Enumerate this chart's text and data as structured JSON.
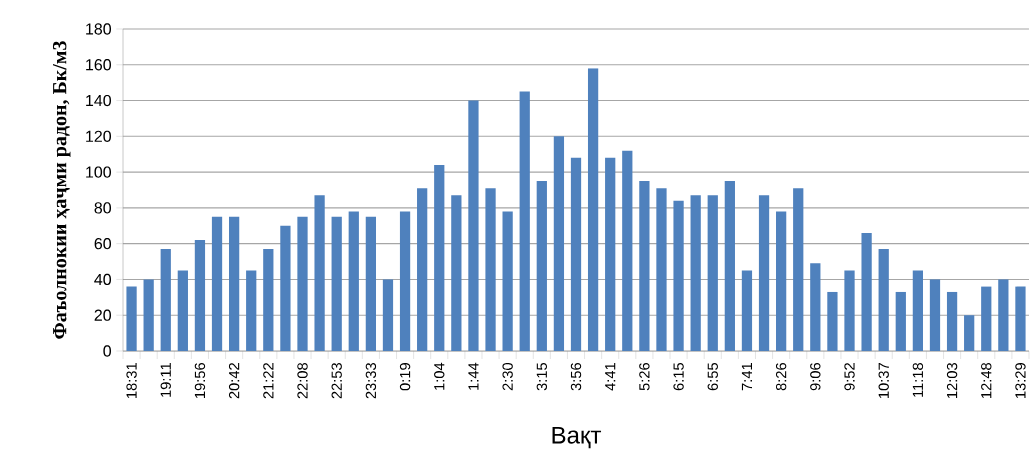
{
  "chart_data": {
    "type": "bar",
    "xlabel": "Вақт",
    "ylabel": "Фаъолнокии ҳаҷми радон, Бк/м3",
    "categories": [
      "18:31",
      null,
      "19:11",
      null,
      "19:56",
      null,
      "20:42",
      null,
      "21:22",
      null,
      "22:08",
      null,
      "22:53",
      null,
      "23:33",
      null,
      "0:19",
      null,
      "1:04",
      null,
      "1:44",
      null,
      "2:30",
      null,
      "3:15",
      null,
      "3:56",
      null,
      "4:41",
      null,
      "5:26",
      null,
      "6:15",
      null,
      "6:55",
      null,
      "7:41",
      null,
      "8:26",
      null,
      "9:06",
      null,
      "9:52",
      null,
      "10:37",
      null,
      "11:18",
      null,
      "12:03",
      null,
      "12:48",
      null,
      "13:29"
    ],
    "values": [
      36,
      40,
      57,
      45,
      62,
      75,
      75,
      45,
      57,
      70,
      75,
      87,
      75,
      78,
      75,
      40,
      78,
      91,
      104,
      87,
      140,
      91,
      78,
      145,
      95,
      120,
      108,
      158,
      108,
      112,
      95,
      91,
      84,
      87,
      87,
      95,
      45,
      87,
      78,
      91,
      49,
      33,
      45,
      66,
      57,
      33,
      45,
      40,
      33,
      20,
      36,
      40,
      36
    ],
    "color": "#4f81bd",
    "ylim": [
      0,
      180
    ],
    "yticks": [
      0,
      20,
      40,
      60,
      80,
      100,
      120,
      140,
      160,
      180
    ],
    "grid": "y"
  }
}
